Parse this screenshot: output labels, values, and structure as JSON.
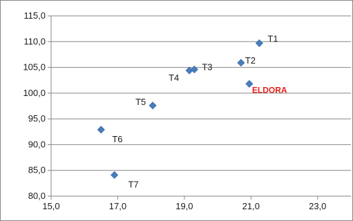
{
  "chart_data": {
    "type": "scatter",
    "title": "",
    "xlabel": "",
    "ylabel": "",
    "xlim": [
      15.0,
      24.0
    ],
    "ylim": [
      80.0,
      115.0
    ],
    "x_ticks": [
      "15,0",
      "17,0",
      "19,0",
      "21,0",
      "23,0"
    ],
    "y_ticks": [
      "80,0",
      "85,0",
      "90,0",
      "95,0",
      "100,0",
      "105,0",
      "110,0",
      "115,0"
    ],
    "grid": "horizontal",
    "legend": "none",
    "marker_color": "#4a7ebb",
    "highlight_color": "#e8211d",
    "points": [
      {
        "label": "T1",
        "x": 21.25,
        "y": 109.7
      },
      {
        "label": "T2",
        "x": 20.7,
        "y": 105.9
      },
      {
        "label": "T3",
        "x": 19.3,
        "y": 104.6
      },
      {
        "label": "T4",
        "x": 19.15,
        "y": 104.4
      },
      {
        "label": "T5",
        "x": 18.05,
        "y": 97.6
      },
      {
        "label": "T6",
        "x": 16.5,
        "y": 92.9
      },
      {
        "label": "T7",
        "x": 16.9,
        "y": 84.1
      },
      {
        "label": "ELDORA",
        "x": 20.95,
        "y": 101.8,
        "highlight": true
      }
    ]
  }
}
